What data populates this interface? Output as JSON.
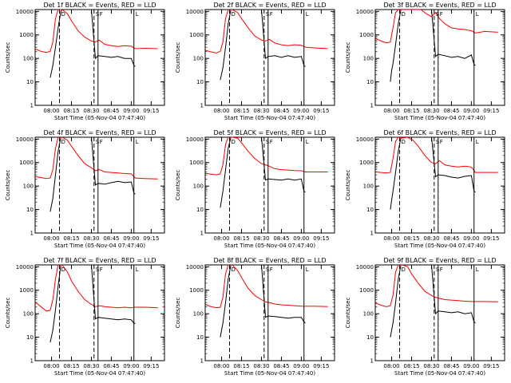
{
  "ylabel": "Counts/sec",
  "xlabel": "Start Time (05-Nov-04 07:47:40)",
  "x_ticks": [
    "08:00",
    "08:15",
    "08:30",
    "08:45",
    "09:00",
    "09:15"
  ],
  "y_ticks": [
    "1",
    "10",
    "100",
    "1000",
    "10000"
  ],
  "colors": {
    "events": "#000000",
    "lld": "#ff0000"
  },
  "chart_data": [
    {
      "type": "line",
      "title": "Det 1f BLACK = Events, RED = LLD",
      "markers": [
        "D",
        "S",
        "F",
        "L"
      ],
      "yscale": "log",
      "ylim": [
        1,
        12000
      ],
      "xlim": [
        "07:47:40",
        "09:25:00"
      ],
      "series": [
        {
          "name": "Events",
          "color": "#000000",
          "x": [
            "07:59",
            "08:01",
            "08:03",
            "08:05",
            "08:07",
            "08:08",
            "08:30",
            "08:33",
            "08:35",
            "08:40",
            "08:45",
            "08:50",
            "08:55",
            "09:00",
            "09:02",
            "09:03"
          ],
          "y": [
            15,
            50,
            300,
            2000,
            10000,
            12000,
            12000,
            100,
            130,
            120,
            110,
            120,
            100,
            100,
            50,
            45
          ]
        },
        {
          "name": "LLD",
          "color": "#ff0000",
          "x": [
            "07:48",
            "07:52",
            "07:56",
            "07:59",
            "08:01",
            "08:03",
            "08:05",
            "08:08",
            "08:12",
            "08:15",
            "08:20",
            "08:25",
            "08:30",
            "08:33",
            "08:36",
            "08:40",
            "08:45",
            "08:50",
            "08:55",
            "09:00",
            "09:03",
            "09:10",
            "09:20"
          ],
          "y": [
            250,
            200,
            180,
            200,
            500,
            5000,
            12000,
            12000,
            8000,
            4000,
            1500,
            800,
            550,
            500,
            600,
            400,
            350,
            320,
            350,
            330,
            260,
            270,
            260
          ]
        }
      ]
    },
    {
      "type": "line",
      "title": "Det 2f BLACK = Events, RED = LLD",
      "markers": [
        "D",
        "S",
        "F",
        "L"
      ],
      "yscale": "log",
      "ylim": [
        1,
        12000
      ],
      "xlim": [
        "07:47:40",
        "09:25:00"
      ],
      "series": [
        {
          "name": "Events",
          "color": "#000000",
          "x": [
            "07:59",
            "08:01",
            "08:03",
            "08:05",
            "08:07",
            "08:30",
            "08:33",
            "08:35",
            "08:40",
            "08:45",
            "08:50",
            "08:55",
            "09:00",
            "09:02",
            "09:03"
          ],
          "y": [
            12,
            40,
            300,
            3000,
            12000,
            12000,
            100,
            120,
            130,
            110,
            130,
            110,
            120,
            50,
            45
          ]
        },
        {
          "name": "LLD",
          "color": "#ff0000",
          "x": [
            "07:48",
            "07:52",
            "07:56",
            "07:59",
            "08:01",
            "08:03",
            "08:05",
            "08:08",
            "08:12",
            "08:15",
            "08:20",
            "08:25",
            "08:30",
            "08:33",
            "08:36",
            "08:40",
            "08:45",
            "08:50",
            "08:55",
            "09:00",
            "09:03",
            "09:10",
            "09:20"
          ],
          "y": [
            220,
            190,
            170,
            200,
            500,
            5000,
            12000,
            12000,
            9000,
            5000,
            2000,
            900,
            600,
            550,
            650,
            450,
            380,
            350,
            380,
            360,
            300,
            280,
            260
          ]
        }
      ]
    },
    {
      "type": "line",
      "title": "Det 3f BLACK = Events, RED = LLD",
      "markers": [
        "D",
        "S",
        "F",
        "L"
      ],
      "yscale": "log",
      "ylim": [
        1,
        12000
      ],
      "xlim": [
        "07:47:40",
        "09:25:00"
      ],
      "series": [
        {
          "name": "Events",
          "color": "#000000",
          "x": [
            "07:59",
            "08:00",
            "08:01",
            "08:03",
            "08:05",
            "08:07",
            "08:30",
            "08:33",
            "08:35",
            "08:40",
            "08:45",
            "08:50",
            "08:55",
            "09:00",
            "09:02",
            "09:03"
          ],
          "y": [
            10,
            30,
            60,
            400,
            3000,
            12000,
            12000,
            120,
            150,
            130,
            110,
            120,
            100,
            140,
            55,
            50
          ]
        },
        {
          "name": "LLD",
          "color": "#ff0000",
          "x": [
            "07:48",
            "07:52",
            "07:56",
            "07:59",
            "08:01",
            "08:03",
            "08:05",
            "08:08",
            "08:15",
            "08:22",
            "08:26",
            "08:30",
            "08:33",
            "08:36",
            "08:40",
            "08:45",
            "08:50",
            "08:55",
            "09:00",
            "09:03",
            "09:10",
            "09:20"
          ],
          "y": [
            700,
            550,
            450,
            500,
            2000,
            9000,
            12000,
            12000,
            12000,
            12000,
            8000,
            6000,
            9000,
            5000,
            3000,
            2000,
            1800,
            1700,
            1500,
            1200,
            1400,
            1300
          ]
        }
      ]
    },
    {
      "type": "line",
      "title": "Det 4f BLACK = Events, RED = LLD",
      "markers": [
        "D",
        "S",
        "F",
        "L"
      ],
      "yscale": "log",
      "ylim": [
        1,
        12000
      ],
      "xlim": [
        "07:47:40",
        "09:25:00"
      ],
      "series": [
        {
          "name": "Events",
          "color": "#000000",
          "x": [
            "07:59",
            "08:01",
            "08:03",
            "08:05",
            "08:07",
            "08:30",
            "08:33",
            "08:35",
            "08:40",
            "08:45",
            "08:50",
            "08:55",
            "09:00",
            "09:02",
            "09:03"
          ],
          "y": [
            8,
            30,
            300,
            3000,
            12000,
            12000,
            110,
            130,
            120,
            140,
            160,
            140,
            150,
            50,
            45
          ]
        },
        {
          "name": "LLD",
          "color": "#ff0000",
          "x": [
            "07:48",
            "07:52",
            "07:56",
            "07:59",
            "08:01",
            "08:03",
            "08:05",
            "08:08",
            "08:12",
            "08:15",
            "08:20",
            "08:25",
            "08:30",
            "08:33",
            "08:36",
            "08:40",
            "08:45",
            "08:50",
            "08:55",
            "09:00",
            "09:03",
            "09:10",
            "09:20"
          ],
          "y": [
            250,
            230,
            210,
            220,
            500,
            4000,
            12000,
            12000,
            9000,
            5000,
            2000,
            900,
            600,
            450,
            500,
            400,
            380,
            360,
            340,
            330,
            220,
            210,
            200
          ]
        }
      ]
    },
    {
      "type": "line",
      "title": "Det 5f BLACK = Events, RED = LLD",
      "markers": [
        "D",
        "S",
        "F",
        "L"
      ],
      "yscale": "log",
      "ylim": [
        1,
        12000
      ],
      "xlim": [
        "07:47:40",
        "09:25:00"
      ],
      "series": [
        {
          "name": "Events",
          "color": "#000000",
          "x": [
            "07:59",
            "08:01",
            "08:03",
            "08:05",
            "08:07",
            "08:30",
            "08:33",
            "08:35",
            "08:40",
            "08:45",
            "08:50",
            "08:55",
            "09:00",
            "09:02",
            "09:03"
          ],
          "y": [
            12,
            60,
            500,
            4000,
            12000,
            12000,
            180,
            200,
            190,
            180,
            200,
            180,
            200,
            60,
            55
          ]
        },
        {
          "name": "LLD",
          "color": "#ff0000",
          "x": [
            "07:48",
            "07:52",
            "07:56",
            "07:59",
            "08:01",
            "08:03",
            "08:05",
            "08:08",
            "08:12",
            "08:15",
            "08:20",
            "08:25",
            "08:30",
            "08:33",
            "08:36",
            "08:40",
            "08:45",
            "08:50",
            "08:55",
            "09:00",
            "09:03",
            "09:10",
            "09:20"
          ],
          "y": [
            350,
            320,
            300,
            330,
            800,
            6000,
            12000,
            12000,
            11000,
            7000,
            3000,
            1500,
            900,
            800,
            700,
            550,
            500,
            480,
            460,
            450,
            400,
            400,
            400
          ]
        }
      ]
    },
    {
      "type": "line",
      "title": "Det 6f BLACK = Events, RED = LLD",
      "markers": [
        "D",
        "S",
        "F",
        "L"
      ],
      "yscale": "log",
      "ylim": [
        1,
        12000
      ],
      "xlim": [
        "07:47:40",
        "09:25:00"
      ],
      "series": [
        {
          "name": "Events",
          "color": "#000000",
          "x": [
            "07:59",
            "08:00",
            "08:01",
            "08:03",
            "08:05",
            "08:07",
            "08:30",
            "08:33",
            "08:35",
            "08:40",
            "08:45",
            "08:50",
            "08:55",
            "09:00",
            "09:02",
            "09:03"
          ],
          "y": [
            10,
            25,
            60,
            400,
            3000,
            12000,
            12000,
            250,
            300,
            280,
            240,
            220,
            260,
            280,
            60,
            55
          ]
        },
        {
          "name": "LLD",
          "color": "#ff0000",
          "x": [
            "07:48",
            "07:52",
            "07:56",
            "07:59",
            "08:01",
            "08:03",
            "08:05",
            "08:08",
            "08:12",
            "08:16",
            "08:20",
            "08:25",
            "08:30",
            "08:33",
            "08:36",
            "08:40",
            "08:45",
            "08:50",
            "08:55",
            "09:00",
            "09:03",
            "09:10",
            "09:20"
          ],
          "y": [
            400,
            380,
            360,
            380,
            1500,
            8000,
            12000,
            11000,
            12000,
            9000,
            5000,
            2000,
            1000,
            900,
            1200,
            800,
            700,
            650,
            700,
            650,
            380,
            380,
            380
          ]
        }
      ]
    },
    {
      "type": "line",
      "title": "Det 7f BLACK = Events, RED = LLD",
      "markers": [
        "D",
        "S",
        "F",
        "L"
      ],
      "yscale": "log",
      "ylim": [
        1,
        12000
      ],
      "xlim": [
        "07:47:40",
        "09:25:00"
      ],
      "series": [
        {
          "name": "Events",
          "color": "#000000",
          "x": [
            "07:59",
            "08:01",
            "08:03",
            "08:05",
            "08:07",
            "08:30",
            "08:33",
            "08:35",
            "08:40",
            "08:45",
            "08:50",
            "08:55",
            "09:00",
            "09:02",
            "09:03"
          ],
          "y": [
            6,
            20,
            150,
            1500,
            12000,
            12000,
            60,
            70,
            65,
            60,
            55,
            60,
            55,
            40,
            38
          ]
        },
        {
          "name": "LLD",
          "color": "#ff0000",
          "x": [
            "07:48",
            "07:52",
            "07:56",
            "07:59",
            "08:01",
            "08:03",
            "08:05",
            "08:08",
            "08:12",
            "08:15",
            "08:20",
            "08:25",
            "08:30",
            "08:33",
            "08:36",
            "08:40",
            "08:45",
            "08:50",
            "08:55",
            "09:00",
            "09:03",
            "09:10",
            "09:20"
          ],
          "y": [
            300,
            200,
            130,
            140,
            400,
            3000,
            12000,
            12000,
            6000,
            2500,
            900,
            400,
            250,
            200,
            220,
            200,
            190,
            180,
            190,
            180,
            190,
            190,
            180
          ]
        }
      ]
    },
    {
      "type": "line",
      "title": "Det 8f BLACK = Events, RED = LLD",
      "markers": [
        "D",
        "S",
        "F",
        "L"
      ],
      "yscale": "log",
      "ylim": [
        1,
        12000
      ],
      "xlim": [
        "07:47:40",
        "09:25:00"
      ],
      "series": [
        {
          "name": "Events",
          "color": "#000000",
          "x": [
            "07:59",
            "08:01",
            "08:03",
            "08:05",
            "08:07",
            "08:30",
            "08:33",
            "08:35",
            "08:40",
            "08:45",
            "08:50",
            "08:55",
            "09:00",
            "09:02",
            "09:03"
          ],
          "y": [
            10,
            40,
            300,
            3000,
            12000,
            12000,
            70,
            80,
            75,
            70,
            65,
            70,
            70,
            45,
            40
          ]
        },
        {
          "name": "LLD",
          "color": "#ff0000",
          "x": [
            "07:48",
            "07:52",
            "07:56",
            "07:59",
            "08:01",
            "08:03",
            "08:05",
            "08:08",
            "08:12",
            "08:15",
            "08:20",
            "08:25",
            "08:30",
            "08:33",
            "08:36",
            "08:40",
            "08:45",
            "08:50",
            "08:55",
            "09:00",
            "09:03",
            "09:10",
            "09:20"
          ],
          "y": [
            250,
            200,
            180,
            190,
            500,
            5000,
            12000,
            12000,
            7000,
            3500,
            1200,
            600,
            400,
            320,
            300,
            260,
            240,
            230,
            220,
            210,
            210,
            210,
            200
          ]
        }
      ]
    },
    {
      "type": "line",
      "title": "Det 9f BLACK = Events, RED = LLD",
      "markers": [
        "D",
        "S",
        "F",
        "L"
      ],
      "yscale": "log",
      "ylim": [
        1,
        12000
      ],
      "xlim": [
        "07:47:40",
        "09:25:00"
      ],
      "series": [
        {
          "name": "Events",
          "color": "#000000",
          "x": [
            "07:59",
            "08:01",
            "08:03",
            "08:05",
            "08:07",
            "08:30",
            "08:33",
            "08:35",
            "08:40",
            "08:45",
            "08:50",
            "08:55",
            "09:00",
            "09:02",
            "09:03"
          ],
          "y": [
            10,
            40,
            300,
            3000,
            12000,
            12000,
            100,
            130,
            120,
            110,
            120,
            100,
            110,
            45,
            40
          ]
        },
        {
          "name": "LLD",
          "color": "#ff0000",
          "x": [
            "07:48",
            "07:52",
            "07:56",
            "07:59",
            "08:01",
            "08:03",
            "08:05",
            "08:08",
            "08:12",
            "08:15",
            "08:20",
            "08:25",
            "08:30",
            "08:33",
            "08:36",
            "08:40",
            "08:45",
            "08:50",
            "08:55",
            "09:00",
            "09:03",
            "09:10",
            "09:20"
          ],
          "y": [
            280,
            230,
            200,
            220,
            600,
            6000,
            12000,
            12000,
            10000,
            5000,
            2000,
            900,
            600,
            500,
            450,
            400,
            380,
            360,
            340,
            330,
            330,
            330,
            320
          ]
        }
      ]
    }
  ]
}
